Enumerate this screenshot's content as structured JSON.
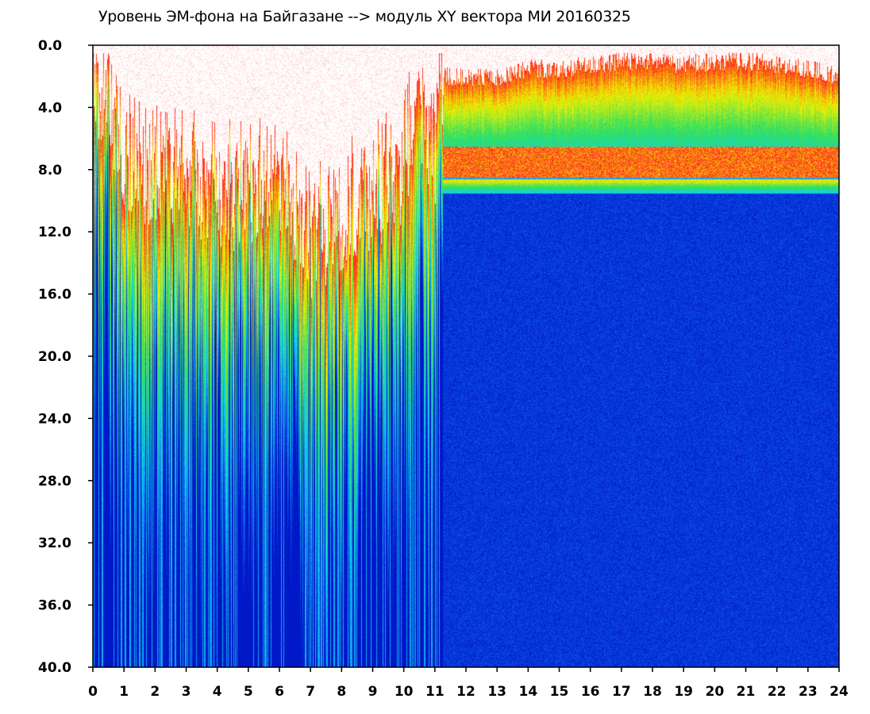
{
  "title": "Уровень ЭМ-фона на Байгазане  -->  модуль XY вектора МИ  20160325",
  "chart_data": {
    "type": "heatmap",
    "title": "Уровень ЭМ-фона на Байгазане  -->  модуль XY вектора МИ  20160325",
    "xlabel": "",
    "ylabel": "",
    "xlim": [
      0,
      24
    ],
    "ylim": [
      0,
      40
    ],
    "y_inverted": true,
    "x_ticks": [
      "0",
      "1",
      "2",
      "3",
      "4",
      "5",
      "6",
      "7",
      "8",
      "9",
      "10",
      "11",
      "12",
      "13",
      "14",
      "15",
      "16",
      "17",
      "18",
      "19",
      "20",
      "21",
      "22",
      "23",
      "24"
    ],
    "y_ticks": [
      "0.0",
      "4.0",
      "8.0",
      "12.0",
      "16.0",
      "20.0",
      "24.0",
      "28.0",
      "32.0",
      "36.0",
      "40.0"
    ],
    "colormap": [
      "#ffffff",
      "#ff2020",
      "#f0f000",
      "#30e060",
      "#10d0f0",
      "#1060f0",
      "#0018c8"
    ],
    "intensity_top_profile": {
      "description_hours": [
        0,
        0.5,
        1,
        2,
        3,
        4,
        5,
        6,
        7,
        8,
        9,
        10,
        10.5,
        11,
        11.3,
        12,
        13,
        14,
        15,
        16,
        17,
        18,
        19,
        20,
        21,
        22,
        23,
        24
      ],
      "top_value": [
        2.5,
        3.0,
        8.0,
        8.5,
        9.0,
        9.5,
        10.0,
        9.0,
        13.0,
        11.0,
        10.0,
        8.0,
        4.0,
        7.0,
        2.0,
        2.0,
        2.0,
        1.5,
        1.5,
        1.2,
        1.0,
        1.0,
        1.2,
        1.0,
        1.0,
        1.2,
        1.5,
        2.0
      ]
    }
  }
}
